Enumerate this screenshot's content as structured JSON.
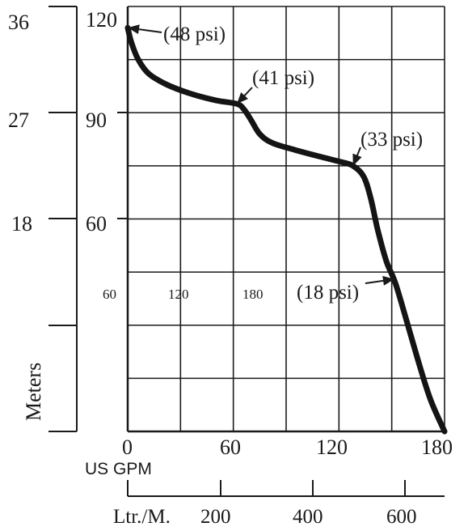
{
  "chart_data": {
    "type": "line",
    "series": [
      {
        "values": [
          [
            0,
            114
          ],
          [
            2,
            110
          ],
          [
            6,
            105
          ],
          [
            12,
            101
          ],
          [
            22,
            98
          ],
          [
            35,
            95.5
          ],
          [
            50,
            93.5
          ],
          [
            62,
            92.5
          ],
          [
            66,
            91
          ],
          [
            70,
            88
          ],
          [
            75,
            84
          ],
          [
            82,
            81.5
          ],
          [
            95,
            79.5
          ],
          [
            110,
            77.5
          ],
          [
            122,
            76
          ],
          [
            128,
            75
          ],
          [
            134,
            72
          ],
          [
            138,
            66
          ],
          [
            142,
            57
          ],
          [
            147,
            48
          ],
          [
            152,
            42
          ],
          [
            158,
            32
          ],
          [
            165,
            20
          ],
          [
            172,
            9
          ],
          [
            180,
            0
          ]
        ]
      }
    ],
    "x_gpm": {
      "ticks": [
        "0",
        "60",
        "120",
        "180"
      ],
      "range": [
        0,
        180
      ],
      "label": "US GPM"
    },
    "x_lpm": {
      "ticks": [
        "200",
        "400",
        "600"
      ],
      "values": [
        200,
        400,
        600
      ],
      "label": "Ltr./M."
    },
    "y_feet": {
      "ticks": [
        "60",
        "90",
        "120"
      ],
      "range": [
        0,
        120
      ]
    },
    "y_meters": {
      "ticks": [
        "18",
        "27",
        "36"
      ],
      "label": "Meters"
    },
    "inner_labels": [
      "60",
      "120",
      "180"
    ],
    "annotations": [
      {
        "text": "(48 psi)",
        "x": 0,
        "y": 114
      },
      {
        "text": "(41 psi)",
        "x": 62,
        "y": 92.5
      },
      {
        "text": "(33 psi)",
        "x": 128,
        "y": 75
      },
      {
        "text": "(18 psi)",
        "x": 151.5,
        "y": 43
      }
    ],
    "grid": true,
    "line_color": "#141414"
  }
}
